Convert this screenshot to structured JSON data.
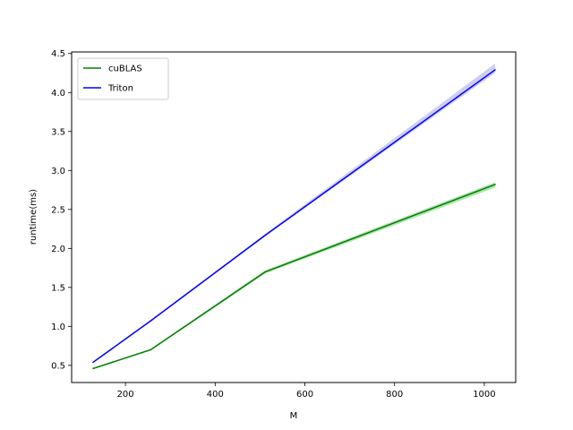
{
  "chart_data": {
    "type": "line",
    "xlabel": "M",
    "ylabel": "runtime(ms)",
    "xlim": [
      80,
      1070
    ],
    "ylim": [
      0.28,
      4.52
    ],
    "xticks": [
      200,
      400,
      600,
      800,
      1000
    ],
    "yticks": [
      0.5,
      1.0,
      1.5,
      2.0,
      2.5,
      3.0,
      3.5,
      4.0,
      4.5
    ],
    "xtick_labels": [
      "200",
      "400",
      "600",
      "800",
      "1000"
    ],
    "ytick_labels": [
      "0.5",
      "1.0",
      "1.5",
      "2.0",
      "2.5",
      "3.0",
      "3.5",
      "4.0",
      "4.5"
    ],
    "grid": false,
    "legend_position": "top-left",
    "series": [
      {
        "name": "cuBLAS",
        "color": "#008000",
        "band_color": "#90d890",
        "x": [
          128,
          256,
          512,
          1024
        ],
        "y": [
          0.46,
          0.7,
          1.7,
          2.82
        ],
        "y_lower": [
          0.45,
          0.69,
          1.68,
          2.78
        ],
        "y_upper": [
          0.47,
          0.71,
          1.72,
          2.85
        ]
      },
      {
        "name": "Triton",
        "color": "#0000ff",
        "band_color": "#b8b8f0",
        "x": [
          128,
          256,
          512,
          1024
        ],
        "y": [
          0.54,
          1.07,
          2.17,
          4.29
        ],
        "y_lower": [
          0.53,
          1.06,
          2.16,
          4.25
        ],
        "y_upper": [
          0.55,
          1.08,
          2.19,
          4.37
        ]
      }
    ]
  }
}
